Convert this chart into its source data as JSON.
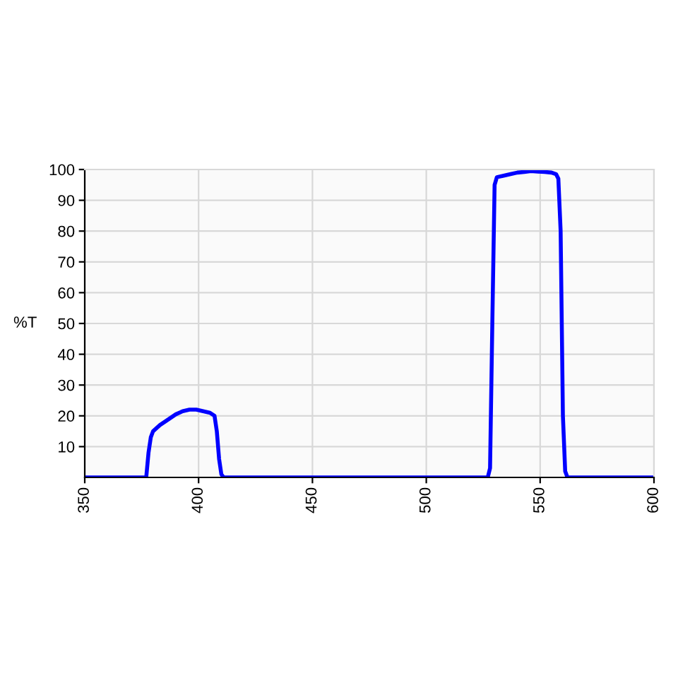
{
  "chart_data": {
    "type": "line",
    "ylabel": "%T",
    "x": [
      350,
      377,
      378,
      379,
      380,
      383,
      386,
      390,
      393,
      396,
      399,
      402,
      405,
      407,
      408,
      409,
      410,
      411,
      450,
      500,
      527,
      528,
      529,
      530,
      531,
      534,
      537,
      540,
      543,
      546,
      549,
      552,
      555,
      557,
      558,
      559,
      560,
      561,
      562,
      600
    ],
    "series": [
      {
        "color": "#0000ff",
        "values": [
          0,
          0,
          8,
          13,
          15,
          17,
          18.5,
          20.5,
          21.5,
          22,
          22,
          21.5,
          21,
          20,
          15,
          6,
          1,
          0,
          0,
          0,
          0,
          3,
          50,
          95,
          97.5,
          98,
          98.5,
          99,
          99.2,
          99.5,
          99.3,
          99.2,
          99,
          98.5,
          97,
          80,
          20,
          2,
          0,
          0
        ]
      }
    ],
    "xlim": [
      350,
      600
    ],
    "xticks": [
      350,
      400,
      450,
      500,
      550,
      600
    ],
    "ylim": [
      0,
      100
    ],
    "yticks": [
      10,
      20,
      30,
      40,
      50,
      60,
      70,
      80,
      90,
      100
    ],
    "grid": true,
    "legend": false,
    "marker": "none",
    "line_style": "solid"
  }
}
